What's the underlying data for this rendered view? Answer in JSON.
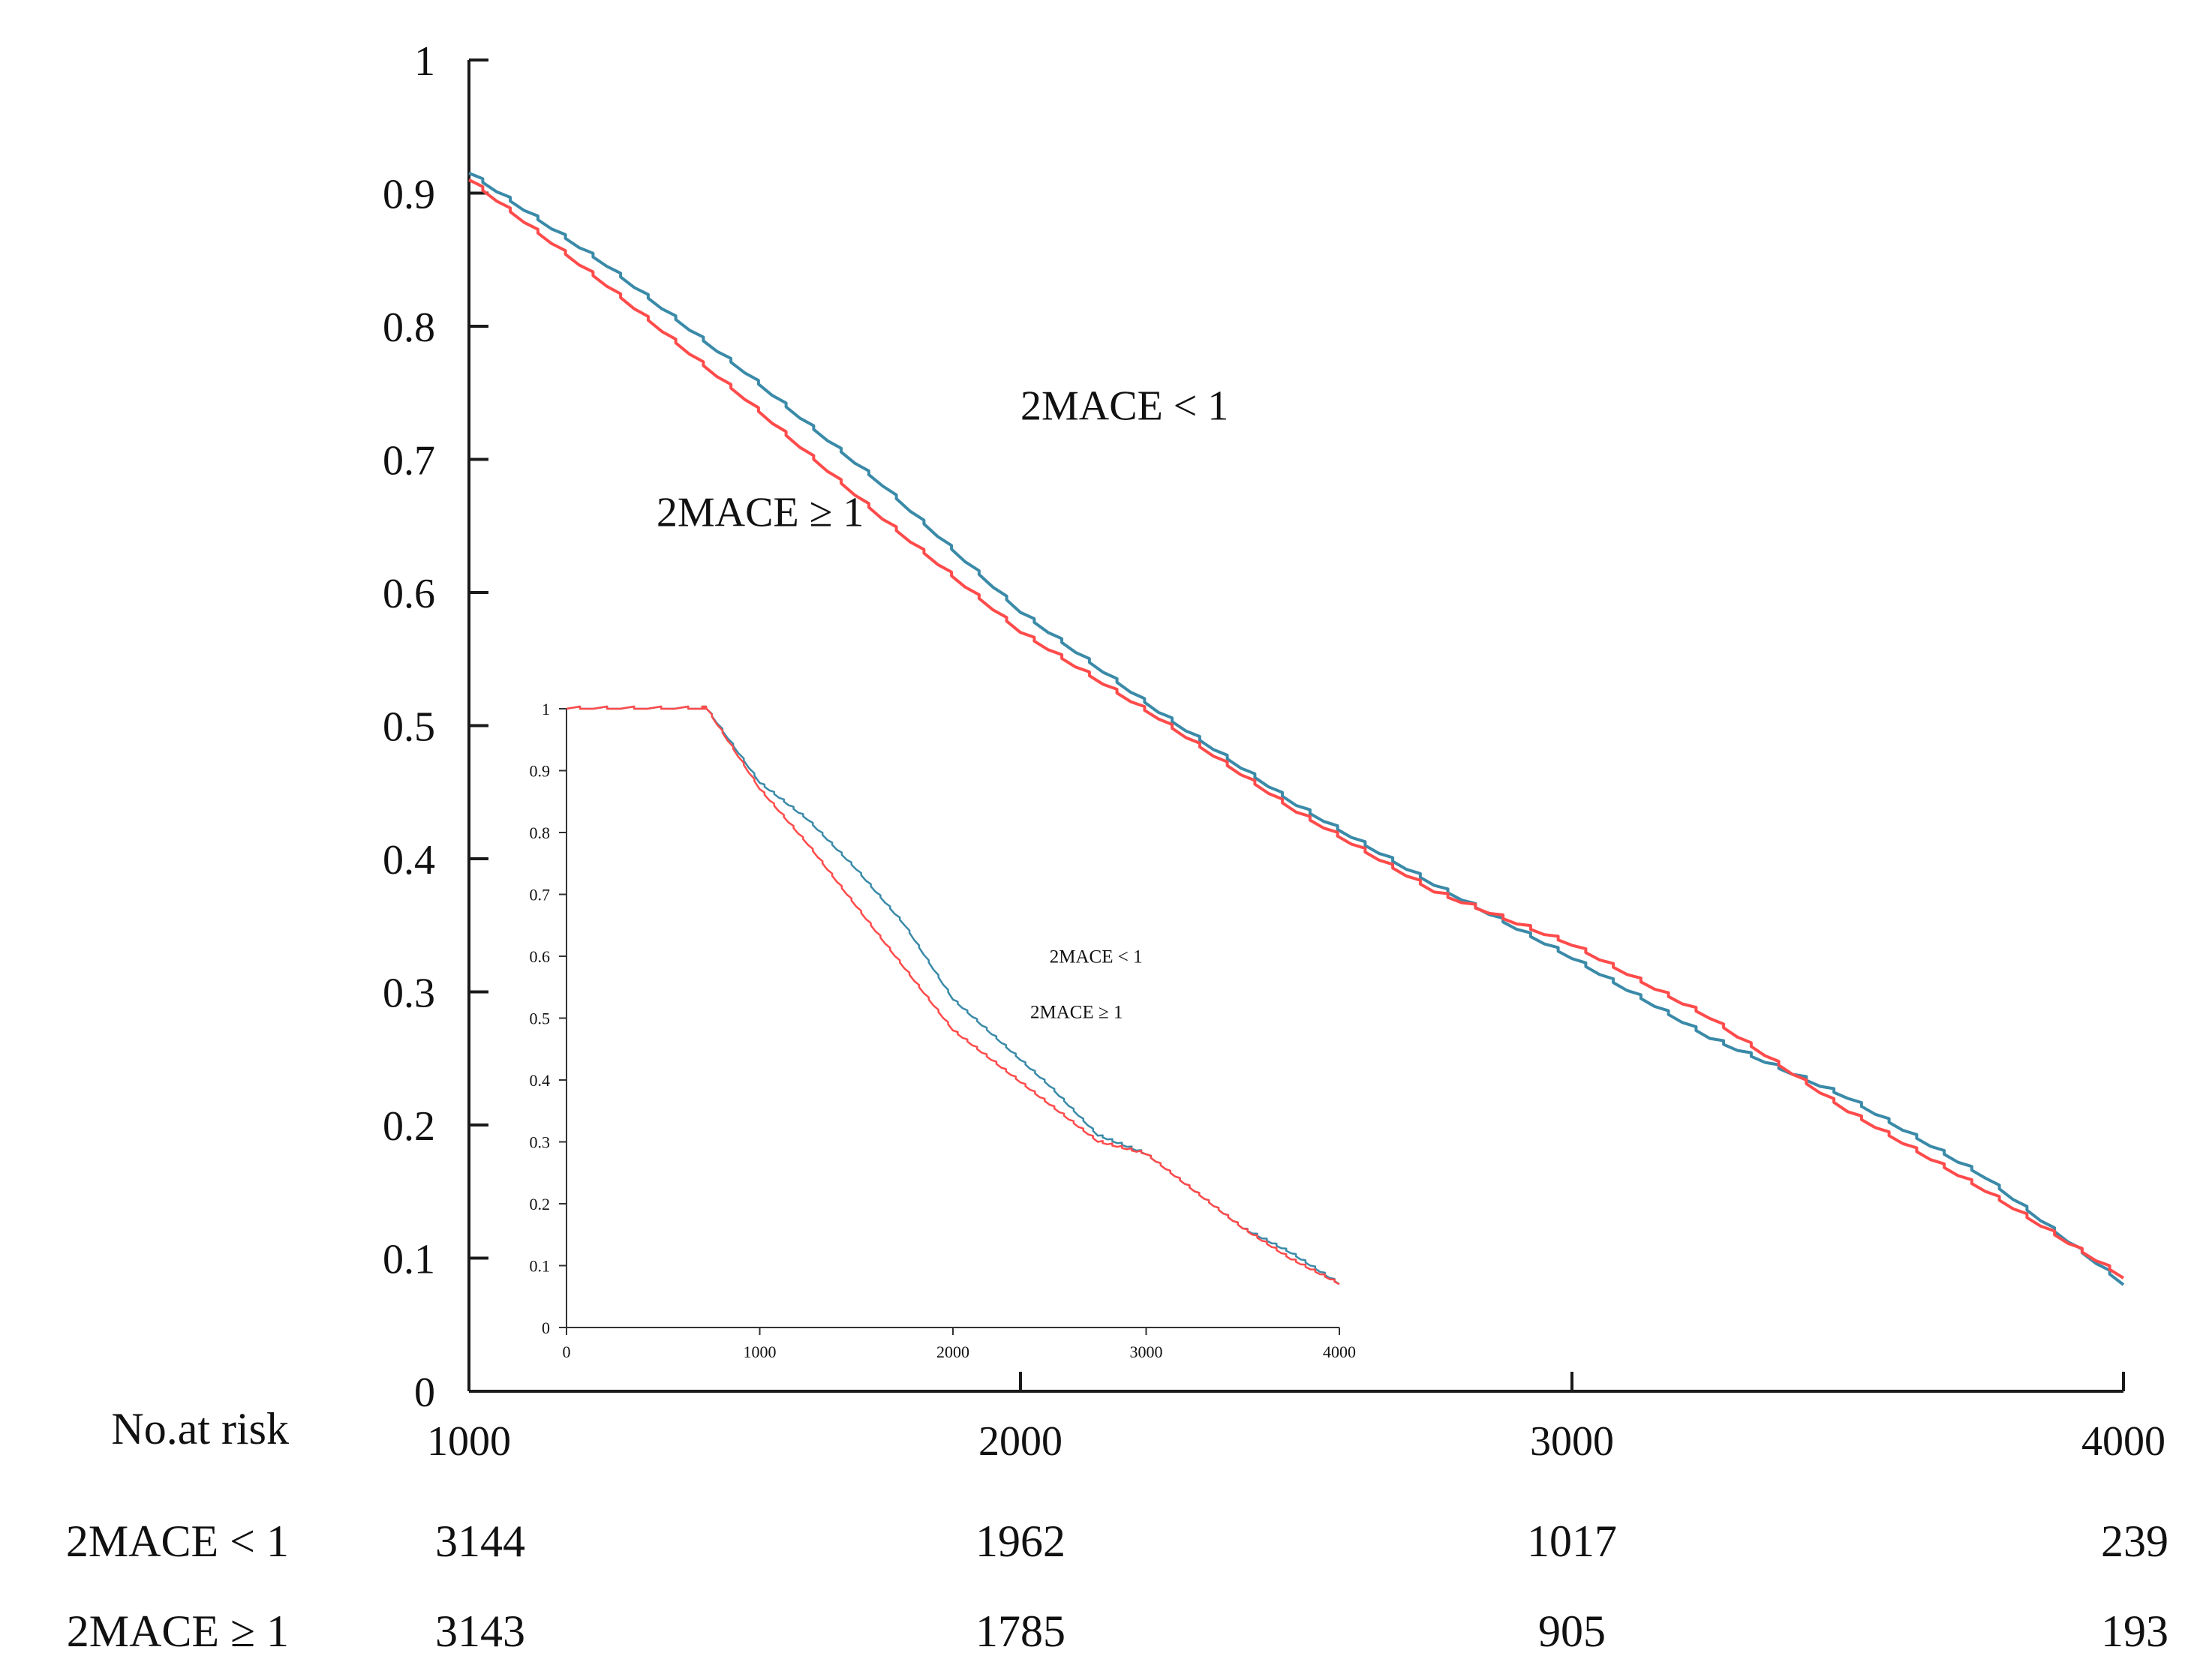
{
  "chart_data": [
    {
      "id": "main",
      "type": "line",
      "title": "",
      "xlabel": "",
      "ylabel": "",
      "xlim": [
        1000,
        4000
      ],
      "ylim": [
        0,
        1
      ],
      "x_ticks": [
        "1000",
        "2000",
        "3000",
        "4000"
      ],
      "y_ticks": [
        "0",
        "0.1",
        "0.2",
        "0.3",
        "0.4",
        "0.5",
        "0.6",
        "0.7",
        "0.8",
        "0.9",
        "1"
      ],
      "grid": false,
      "annotations": [
        {
          "text": "2MACE < 1",
          "x": 2000,
          "y": 0.73
        },
        {
          "text": "2MACE ≥ 1",
          "x": 1340,
          "y": 0.65
        }
      ],
      "series": [
        {
          "color": "#3a8aa8",
          "x": [
            1000,
            1250,
            1500,
            1750,
            2000,
            2250,
            2500,
            2750,
            3000,
            3250,
            3500,
            3750,
            4000
          ],
          "y": [
            0.915,
            0.845,
            0.765,
            0.68,
            0.585,
            0.51,
            0.44,
            0.38,
            0.325,
            0.265,
            0.22,
            0.16,
            0.08
          ]
        },
        {
          "color": "#ff4b4b",
          "x": [
            1000,
            1250,
            1500,
            1750,
            2000,
            2250,
            2500,
            2750,
            3000,
            3250,
            3500,
            3750,
            4000
          ],
          "y": [
            0.91,
            0.83,
            0.745,
            0.655,
            0.57,
            0.505,
            0.435,
            0.375,
            0.335,
            0.28,
            0.21,
            0.15,
            0.085
          ]
        }
      ]
    },
    {
      "id": "inset",
      "type": "line",
      "title": "",
      "xlabel": "",
      "ylabel": "",
      "xlim": [
        0,
        4000
      ],
      "ylim": [
        0,
        1
      ],
      "x_ticks": [
        "0",
        "1000",
        "2000",
        "3000",
        "4000"
      ],
      "y_ticks": [
        "0",
        "0.1",
        "0.2",
        "0.3",
        "0.4",
        "0.5",
        "0.6",
        "0.7",
        "0.8",
        "0.9",
        "1"
      ],
      "grid": false,
      "annotations": [
        {
          "text": "2MACE < 1",
          "x": 2500,
          "y": 0.59
        },
        {
          "text": "2MACE ≥ 1",
          "x": 2400,
          "y": 0.5
        }
      ],
      "series": [
        {
          "color": "#3a8aa8",
          "x": [
            0,
            700,
            725,
            1000,
            1250,
            1500,
            1750,
            2000,
            2250,
            2500,
            2750,
            3000,
            3250,
            3500,
            3750,
            4000
          ],
          "y": [
            1,
            1,
            1,
            0.88,
            0.82,
            0.74,
            0.65,
            0.53,
            0.46,
            0.39,
            0.31,
            0.28,
            0.22,
            0.16,
            0.12,
            0.07
          ]
        },
        {
          "color": "#ff4b4b",
          "x": [
            0,
            700,
            725,
            1000,
            1250,
            1500,
            1750,
            2000,
            2250,
            2500,
            2750,
            3000,
            3250,
            3500,
            3750,
            4000
          ],
          "y": [
            1,
            1,
            1,
            0.87,
            0.78,
            0.68,
            0.58,
            0.48,
            0.42,
            0.36,
            0.3,
            0.28,
            0.22,
            0.16,
            0.11,
            0.07
          ]
        }
      ]
    }
  ],
  "risk_table": {
    "header": "No.at risk",
    "rows": [
      {
        "label": "2MACE < 1",
        "values": [
          "3144",
          "1962",
          "1017",
          "239"
        ]
      },
      {
        "label": "2MACE ≥ 1",
        "values": [
          "3143",
          "1785",
          "905",
          "193"
        ]
      }
    ]
  }
}
